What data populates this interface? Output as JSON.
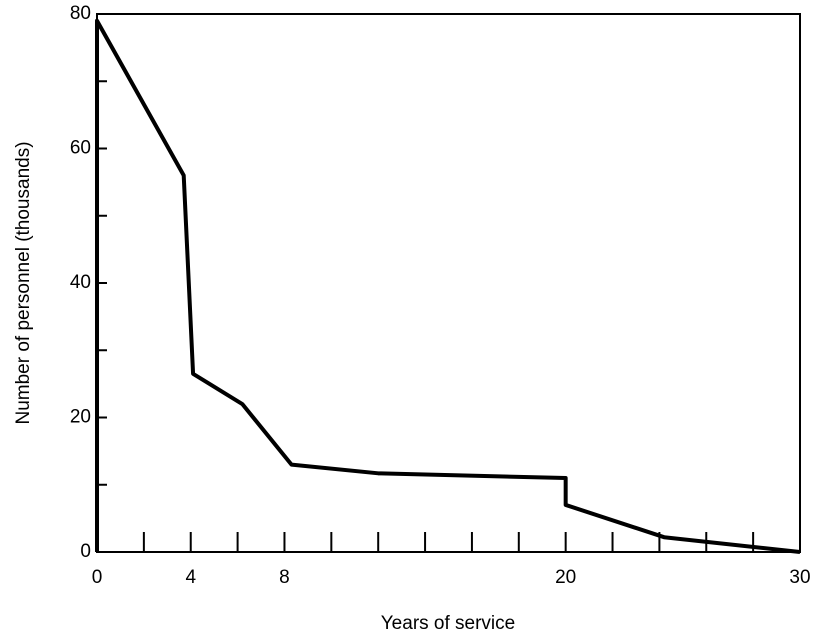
{
  "chart_data": {
    "type": "line",
    "xlabel": "Years of service",
    "ylabel": "Number of personnel (thousands)",
    "x": [
      0,
      0,
      3.7,
      4.1,
      6.2,
      8.3,
      12,
      20,
      20,
      24.2,
      30
    ],
    "series": [
      {
        "color": "#000000",
        "values": [
          0,
          79,
          56,
          26.5,
          22,
          13,
          11.7,
          11,
          7,
          2.2,
          0
        ]
      }
    ],
    "xlim": [
      0,
      30
    ],
    "ylim": [
      0,
      80
    ],
    "xticks": [
      0,
      4,
      8,
      20,
      30
    ],
    "xminor_ticks": [
      2,
      6,
      10,
      12,
      14,
      16,
      18,
      22,
      24,
      26,
      28
    ],
    "yticks": [
      0,
      20,
      40,
      60,
      80
    ],
    "yminor_ticks": [
      10,
      30,
      50,
      70
    ],
    "grid": false
  }
}
